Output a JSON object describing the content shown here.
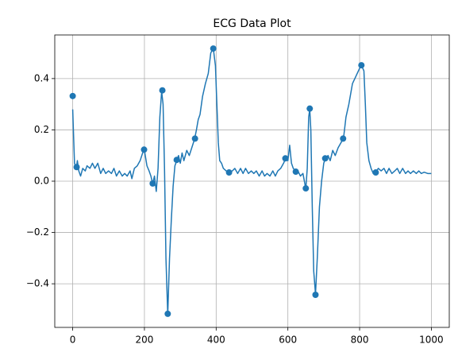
{
  "chart_data": {
    "type": "line",
    "title": "ECG Data Plot",
    "xlim": [
      -50,
      1050
    ],
    "ylim": [
      -0.57,
      0.57
    ],
    "xticks": [
      0,
      200,
      400,
      600,
      800,
      1000
    ],
    "yticks": [
      {
        "value": -0.4,
        "label": "−0.4"
      },
      {
        "value": -0.2,
        "label": "−0.2"
      },
      {
        "value": 0,
        "label": "0.0"
      },
      0.2,
      0.4
    ],
    "grid": true,
    "series": [
      {
        "type": "line",
        "color": "#1f77b4",
        "x": [
          0,
          5,
          10,
          13,
          17,
          22,
          28,
          35,
          40,
          48,
          55,
          62,
          70,
          78,
          85,
          92,
          100,
          108,
          115,
          122,
          130,
          138,
          145,
          152,
          160,
          165,
          172,
          180,
          188,
          195,
          200,
          207,
          213,
          218,
          223,
          228,
          233,
          238,
          243,
          248,
          252,
          256,
          260,
          265,
          270,
          275,
          280,
          285,
          290,
          295,
          300,
          305,
          310,
          318,
          325,
          332,
          340,
          345,
          350,
          355,
          362,
          370,
          378,
          385,
          392,
          398,
          402,
          406,
          410,
          415,
          420,
          428,
          436,
          445,
          452,
          460,
          468,
          475,
          482,
          490,
          498,
          505,
          512,
          520,
          528,
          535,
          542,
          550,
          558,
          565,
          572,
          580,
          588,
          594,
          600,
          605,
          610,
          615,
          622,
          628,
          635,
          642,
          650,
          654,
          658,
          661,
          664,
          668,
          672,
          677,
          682,
          688,
          694,
          700,
          705,
          712,
          718,
          725,
          732,
          740,
          748,
          755,
          762,
          770,
          780,
          790,
          800,
          805,
          812,
          816,
          820,
          826,
          832,
          838,
          845,
          852,
          860,
          868,
          875,
          882,
          890,
          898,
          905,
          912,
          920,
          928,
          935,
          942,
          950,
          958,
          965,
          972,
          980,
          990,
          1000
        ],
        "values": [
          0.28,
          0.07,
          0.05,
          0.08,
          0.04,
          0.02,
          0.05,
          0.04,
          0.06,
          0.05,
          0.07,
          0.05,
          0.07,
          0.03,
          0.05,
          0.03,
          0.04,
          0.03,
          0.05,
          0.02,
          0.04,
          0.02,
          0.03,
          0.02,
          0.04,
          0.01,
          0.05,
          0.06,
          0.08,
          0.11,
          0.12,
          0.06,
          0.04,
          0.02,
          -0.01,
          0.02,
          -0.04,
          0.05,
          0.25,
          0.35,
          0.3,
          0.05,
          -0.3,
          -0.52,
          -0.3,
          -0.15,
          -0.02,
          0.06,
          0.08,
          0.1,
          0.07,
          0.11,
          0.08,
          0.12,
          0.1,
          0.13,
          0.165,
          0.2,
          0.24,
          0.26,
          0.33,
          0.38,
          0.42,
          0.5,
          0.518,
          0.45,
          0.3,
          0.15,
          0.08,
          0.07,
          0.05,
          0.04,
          0.035,
          0.04,
          0.05,
          0.03,
          0.05,
          0.03,
          0.05,
          0.03,
          0.04,
          0.03,
          0.04,
          0.02,
          0.04,
          0.02,
          0.03,
          0.02,
          0.04,
          0.02,
          0.04,
          0.05,
          0.07,
          0.09,
          0.08,
          0.14,
          0.07,
          0.05,
          0.037,
          0.04,
          0.02,
          0.03,
          -0.03,
          0.05,
          0.25,
          0.28,
          0.2,
          -0.1,
          -0.35,
          -0.44,
          -0.3,
          -0.1,
          0.0,
          0.07,
          0.09,
          0.1,
          0.08,
          0.12,
          0.1,
          0.13,
          0.15,
          0.166,
          0.25,
          0.3,
          0.38,
          0.41,
          0.44,
          0.452,
          0.43,
          0.3,
          0.15,
          0.08,
          0.05,
          0.03,
          0.034,
          0.05,
          0.04,
          0.05,
          0.03,
          0.05,
          0.03,
          0.04,
          0.05,
          0.03,
          0.05,
          0.03,
          0.04,
          0.03,
          0.04,
          0.03,
          0.04,
          0.03,
          0.035,
          0.03,
          0.03
        ]
      },
      {
        "type": "scatter",
        "color": "#1f77b4",
        "x": [
          0,
          11,
          199,
          223,
          250,
          265,
          290,
          341,
          392,
          436,
          593,
          622,
          650,
          661,
          677,
          704,
          754,
          805,
          845
        ],
        "values": [
          0.332,
          0.055,
          0.123,
          -0.009,
          0.354,
          -0.517,
          0.083,
          0.166,
          0.517,
          0.034,
          0.089,
          0.037,
          -0.028,
          0.283,
          -0.443,
          0.089,
          0.166,
          0.452,
          0.034
        ]
      }
    ]
  }
}
